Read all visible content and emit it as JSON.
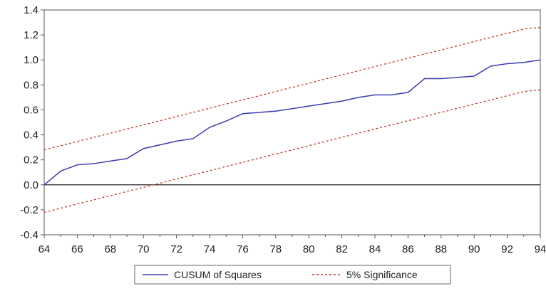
{
  "chart_data": {
    "type": "line",
    "title": "",
    "xlabel": "",
    "ylabel": "",
    "xlim": [
      64,
      94
    ],
    "ylim": [
      -0.4,
      1.4
    ],
    "x_ticks": [
      "64",
      "66",
      "68",
      "70",
      "72",
      "74",
      "76",
      "78",
      "80",
      "82",
      "84",
      "86",
      "88",
      "90",
      "92",
      "94"
    ],
    "y_ticks": [
      "1.4",
      "1.2",
      "1.0",
      "0.8",
      "0.6",
      "0.4",
      "0.2",
      "0.0",
      "-0.2",
      "-0.4"
    ],
    "grid": false,
    "legend_placement": "bottom",
    "x": [
      64,
      65,
      66,
      67,
      68,
      69,
      70,
      71,
      72,
      73,
      74,
      75,
      76,
      77,
      78,
      79,
      80,
      81,
      82,
      83,
      84,
      85,
      86,
      87,
      88,
      89,
      90,
      91,
      92,
      93,
      94
    ],
    "series": [
      {
        "name": "CUSUM of Squares",
        "color": "#3b3bb0",
        "style": "solid",
        "values": [
          0.0,
          0.11,
          0.16,
          0.17,
          0.19,
          0.21,
          0.29,
          0.32,
          0.35,
          0.37,
          0.46,
          0.51,
          0.57,
          0.58,
          0.59,
          0.61,
          0.63,
          0.65,
          0.67,
          0.7,
          0.72,
          0.72,
          0.74,
          0.85,
          0.85,
          0.86,
          0.87,
          0.95,
          0.97,
          0.98,
          1.0
        ]
      },
      {
        "name": "5% Significance",
        "color": "#c0392b",
        "style": "dashed",
        "band": true,
        "upper": [
          0.28,
          0.313,
          0.347,
          0.38,
          0.413,
          0.447,
          0.48,
          0.513,
          0.547,
          0.58,
          0.613,
          0.647,
          0.68,
          0.713,
          0.747,
          0.78,
          0.813,
          0.847,
          0.88,
          0.913,
          0.947,
          0.98,
          1.013,
          1.047,
          1.08,
          1.113,
          1.147,
          1.18,
          1.213,
          1.247,
          1.26
        ],
        "lower": [
          -0.22,
          -0.187,
          -0.153,
          -0.12,
          -0.087,
          -0.053,
          -0.02,
          0.013,
          0.047,
          0.08,
          0.113,
          0.147,
          0.18,
          0.213,
          0.247,
          0.28,
          0.313,
          0.347,
          0.38,
          0.413,
          0.447,
          0.48,
          0.513,
          0.547,
          0.58,
          0.613,
          0.647,
          0.68,
          0.713,
          0.747,
          0.76
        ]
      }
    ],
    "zero_line": 0.0
  }
}
